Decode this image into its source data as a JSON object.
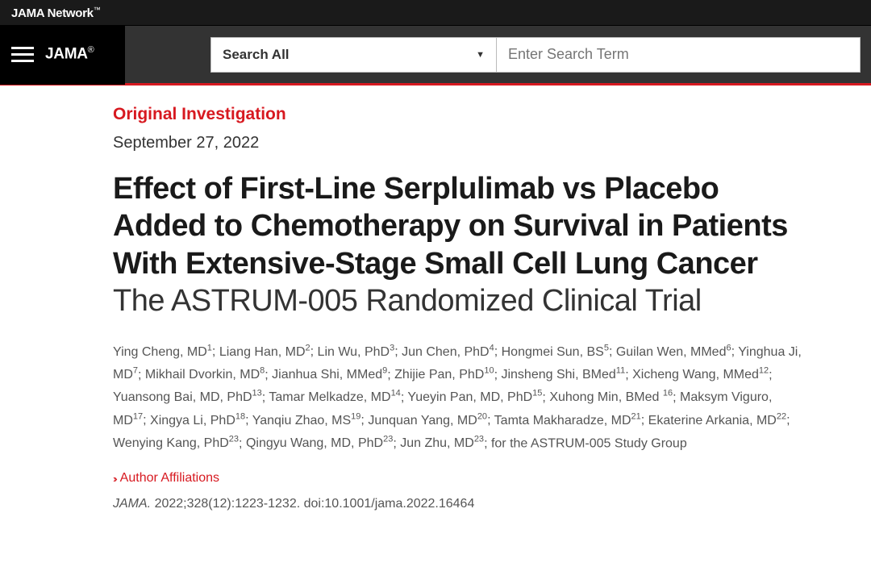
{
  "header": {
    "network_name": "JAMA Network",
    "tm": "™",
    "journal_name": "JAMA",
    "reg": "®",
    "search_select_label": "Search All",
    "search_placeholder": "Enter Search Term"
  },
  "article": {
    "category": "Original Investigation",
    "date": "September 27, 2022",
    "title": "Effect of First-Line Serplulimab vs Placebo Added to Chemotherapy on Survival in Patients With Extensive-Stage Small Cell Lung Cancer",
    "subtitle": "The ASTRUM-005 Randomized Clinical Trial",
    "affiliations_label": "Author Affiliations",
    "citation_journal": "JAMA.",
    "citation_rest": " 2022;328(12):1223-1232. doi:10.1001/jama.2022.16464",
    "authors": [
      {
        "name": "Ying Cheng, MD",
        "aff": "1"
      },
      {
        "name": "Liang Han, MD",
        "aff": "2"
      },
      {
        "name": "Lin Wu, PhD",
        "aff": "3"
      },
      {
        "name": "Jun Chen, PhD",
        "aff": "4"
      },
      {
        "name": "Hongmei Sun, BS",
        "aff": "5"
      },
      {
        "name": "Guilan Wen, MMed",
        "aff": "6"
      },
      {
        "name": "Yinghua Ji, MD",
        "aff": "7"
      },
      {
        "name": "Mikhail Dvorkin, MD",
        "aff": "8"
      },
      {
        "name": "Jianhua Shi, MMed",
        "aff": "9"
      },
      {
        "name": "Zhijie Pan, PhD",
        "aff": "10"
      },
      {
        "name": "Jinsheng Shi, BMed",
        "aff": "11"
      },
      {
        "name": "Xicheng Wang, MMed",
        "aff": "12"
      },
      {
        "name": "Yuansong Bai, MD, PhD",
        "aff": "13"
      },
      {
        "name": "Tamar Melkadze, MD",
        "aff": "14"
      },
      {
        "name": "Yueyin Pan, MD, PhD",
        "aff": "15"
      },
      {
        "name": "Xuhong Min, BMed ",
        "aff": "16"
      },
      {
        "name": "Maksym Viguro, MD",
        "aff": "17"
      },
      {
        "name": "Xingya Li, PhD",
        "aff": "18"
      },
      {
        "name": "Yanqiu Zhao, MS",
        "aff": "19"
      },
      {
        "name": "Junquan Yang, MD",
        "aff": "20"
      },
      {
        "name": "Tamta Makharadze, MD",
        "aff": "21"
      },
      {
        "name": "Ekaterine Arkania, MD",
        "aff": "22"
      },
      {
        "name": "Wenying Kang, PhD",
        "aff": "23"
      },
      {
        "name": "Qingyu Wang, MD, PhD",
        "aff": "23"
      },
      {
        "name": "Jun Zhu, MD",
        "aff": "23"
      }
    ],
    "author_suffix": "; for the ASTRUM-005 Study Group"
  },
  "colors": {
    "accent": "#d71920",
    "top_bar_bg": "#1a1a1a",
    "nav_bar_bg": "#333333",
    "text_primary": "#1a1a1a",
    "text_secondary": "#555555"
  }
}
